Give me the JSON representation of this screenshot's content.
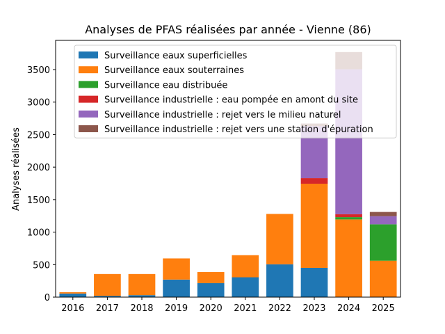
{
  "chart_data": {
    "type": "bar",
    "stacked": true,
    "title": "Analyses de PFAS réalisées par année - Vienne (86)",
    "xlabel": "",
    "ylabel": "Analyses réalisées",
    "ylim": [
      0,
      3950
    ],
    "yticks": [
      0,
      500,
      1000,
      1500,
      2000,
      2500,
      3000,
      3500
    ],
    "grid": false,
    "legend_position": "top-center",
    "categories": [
      "2016",
      "2017",
      "2018",
      "2019",
      "2020",
      "2021",
      "2022",
      "2023",
      "2024",
      "2025"
    ],
    "series": [
      {
        "name": "Surveillance eaux superficielles",
        "color": "#1f77b4",
        "values": [
          55,
          20,
          30,
          270,
          215,
          305,
          505,
          450,
          0,
          0
        ]
      },
      {
        "name": "Surveillance eaux souterraines",
        "color": "#ff7f0e",
        "values": [
          20,
          335,
          325,
          325,
          170,
          340,
          775,
          1295,
          1195,
          560
        ]
      },
      {
        "name": "Surveillance eau distribuée",
        "color": "#2ca02c",
        "values": [
          0,
          0,
          0,
          0,
          0,
          0,
          0,
          0,
          35,
          560
        ]
      },
      {
        "name": "Surveillance industrielle : eau pompée en amont du site",
        "color": "#d62728",
        "values": [
          0,
          0,
          0,
          0,
          0,
          0,
          0,
          85,
          45,
          0
        ]
      },
      {
        "name": "Surveillance industrielle : rejet vers le milieu naturel",
        "color": "#9467bd",
        "values": [
          0,
          0,
          0,
          0,
          0,
          0,
          0,
          800,
          2230,
          125
        ]
      },
      {
        "name": "Surveillance industrielle : rejet vers une station d'épuration",
        "color": "#8c564b",
        "values": [
          0,
          0,
          0,
          0,
          0,
          0,
          0,
          40,
          265,
          65
        ]
      }
    ]
  }
}
